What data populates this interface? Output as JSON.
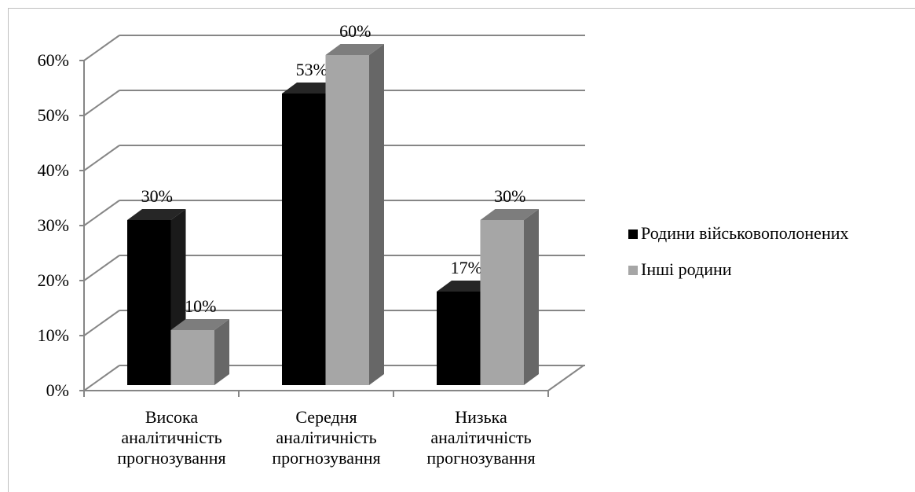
{
  "chart_data": {
    "type": "bar3d",
    "categories": [
      "Висока аналітичність прогнозування",
      "Середня аналітичність прогнозування",
      "Низька аналітичність прогнозування"
    ],
    "series": [
      {
        "name": "Родини військовополонених",
        "color": "#000000",
        "values": [
          30,
          53,
          17
        ],
        "value_labels": [
          "30%",
          "53%",
          "17%"
        ]
      },
      {
        "name": "Інші родини",
        "color": "#a6a6a6",
        "values": [
          10,
          60,
          30
        ],
        "value_labels": [
          "10%",
          "60%",
          "30%"
        ]
      }
    ],
    "ylim": [
      0,
      60
    ],
    "yticks": [
      {
        "value": 0,
        "label": "0%"
      },
      {
        "value": 10,
        "label": "10%"
      },
      {
        "value": 20,
        "label": "20%"
      },
      {
        "value": 30,
        "label": "30%"
      },
      {
        "value": 40,
        "label": "40%"
      },
      {
        "value": 50,
        "label": "50%"
      },
      {
        "value": 60,
        "label": "60%"
      }
    ],
    "grid": true,
    "legend": "right"
  }
}
